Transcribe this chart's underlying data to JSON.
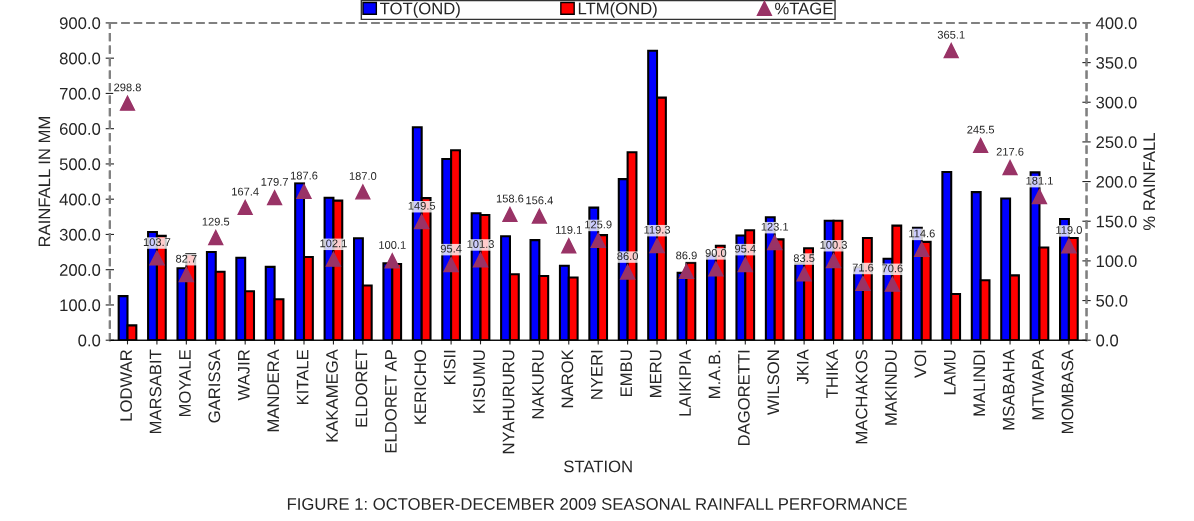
{
  "chart_data": {
    "type": "bar",
    "categories": [
      "LODWAR",
      "MARSABIT",
      "MOYALE",
      "GARISSA",
      "WAJIR",
      "MANDERA",
      "KITALE",
      "KAKAMEGA",
      "ELDORET",
      "ELDORET AP",
      "KERICHO",
      "KISII",
      "KISUMU",
      "NYAHURURU",
      "NAKURU",
      "NAROK",
      "NYERI",
      "EMBU",
      "MERU",
      "LAIKIPIA",
      "M.A.B.",
      "DAGORETTI",
      "WILSON",
      "JKIA",
      "THIKA",
      "MACHAKOS",
      "MAKINDU",
      "VOI",
      "LAMU",
      "MALINDI",
      "MSABAHA",
      "MTWAPA",
      "MOMBASA"
    ],
    "series": [
      {
        "name": "TOT(OND)",
        "color": "#0000ff",
        "values": [
          125,
          307,
          204,
          250,
          234,
          208,
          445,
          404,
          289,
          218,
          604,
          514,
          360,
          295,
          284,
          211,
          376,
          457,
          821,
          191,
          243,
          297,
          349,
          218,
          339,
          207,
          231,
          319,
          477,
          420,
          402,
          476,
          344
        ]
      },
      {
        "name": "LTM(OND)",
        "color": "#ff0000",
        "values": [
          42,
          296,
          244,
          194,
          139,
          116,
          236,
          396,
          155,
          216,
          403,
          539,
          355,
          187,
          182,
          178,
          298,
          533,
          688,
          220,
          268,
          312,
          286,
          261,
          339,
          290,
          325,
          279,
          131,
          170,
          184,
          263,
          290
        ]
      },
      {
        "name": "%TAGE",
        "type": "scatter",
        "axis": "y2",
        "marker": "triangle",
        "color": "#993366",
        "values": [
          298.8,
          103.7,
          82.7,
          129.5,
          167.4,
          179.7,
          187.6,
          102.1,
          187.0,
          100.1,
          149.5,
          95.4,
          101.3,
          158.6,
          156.4,
          119.1,
          125.9,
          86.0,
          119.3,
          86.9,
          90.0,
          95.4,
          123.1,
          83.5,
          100.3,
          71.6,
          70.6,
          114.6,
          365.1,
          245.5,
          217.6,
          181.1,
          119.0
        ],
        "value_labels": [
          "298.8",
          "103.7",
          "82.7",
          "129.5",
          "167.4",
          "179.7",
          "187.6",
          "102.1",
          "187.0",
          "100.1",
          "149.5",
          "95.4",
          "101.3",
          "158.6",
          "156.4",
          "119.1",
          "125.9",
          "86.0",
          "119.3",
          "86.9",
          "90.0",
          "95.4",
          "123.1",
          "83.5",
          "100.3",
          "71.6",
          "70.6",
          "114.6",
          "365.1",
          "245.5",
          "217.6",
          "181.1",
          "119.0"
        ]
      }
    ],
    "xlabel": "STATION",
    "ylabel": "RAINFALL IN MM",
    "y2label": "% RAINFALL",
    "ylim": [
      0,
      900
    ],
    "yticks": [
      {
        "value": 0,
        "label": "0.0"
      },
      {
        "value": 100,
        "label": "100.0"
      },
      {
        "value": 200,
        "label": "200.0"
      },
      {
        "value": 300,
        "label": "300.0"
      },
      {
        "value": 400,
        "label": "400.0"
      },
      {
        "value": 500,
        "label": "500.0"
      },
      {
        "value": 600,
        "label": "600.0"
      },
      {
        "value": 700,
        "label": "700.0"
      },
      {
        "value": 800,
        "label": "800.0"
      },
      {
        "value": 900,
        "label": "900.0"
      }
    ],
    "y2lim": [
      0,
      400
    ],
    "y2ticks": [
      {
        "value": 0,
        "label": "0.0"
      },
      {
        "value": 50,
        "label": "50.0"
      },
      {
        "value": 100,
        "label": "100.0"
      },
      {
        "value": 150,
        "label": "150.0"
      },
      {
        "value": 200,
        "label": "200.0"
      },
      {
        "value": 250,
        "label": "250.0"
      },
      {
        "value": 300,
        "label": "300.0"
      },
      {
        "value": 350,
        "label": "350.0"
      },
      {
        "value": 400,
        "label": "400.0"
      }
    ],
    "legend": "top",
    "annotations": [
      "FIGURE 1: OCTOBER-DECEMBER 2009 SEASONAL RAINFALL PERFORMANCE"
    ]
  }
}
